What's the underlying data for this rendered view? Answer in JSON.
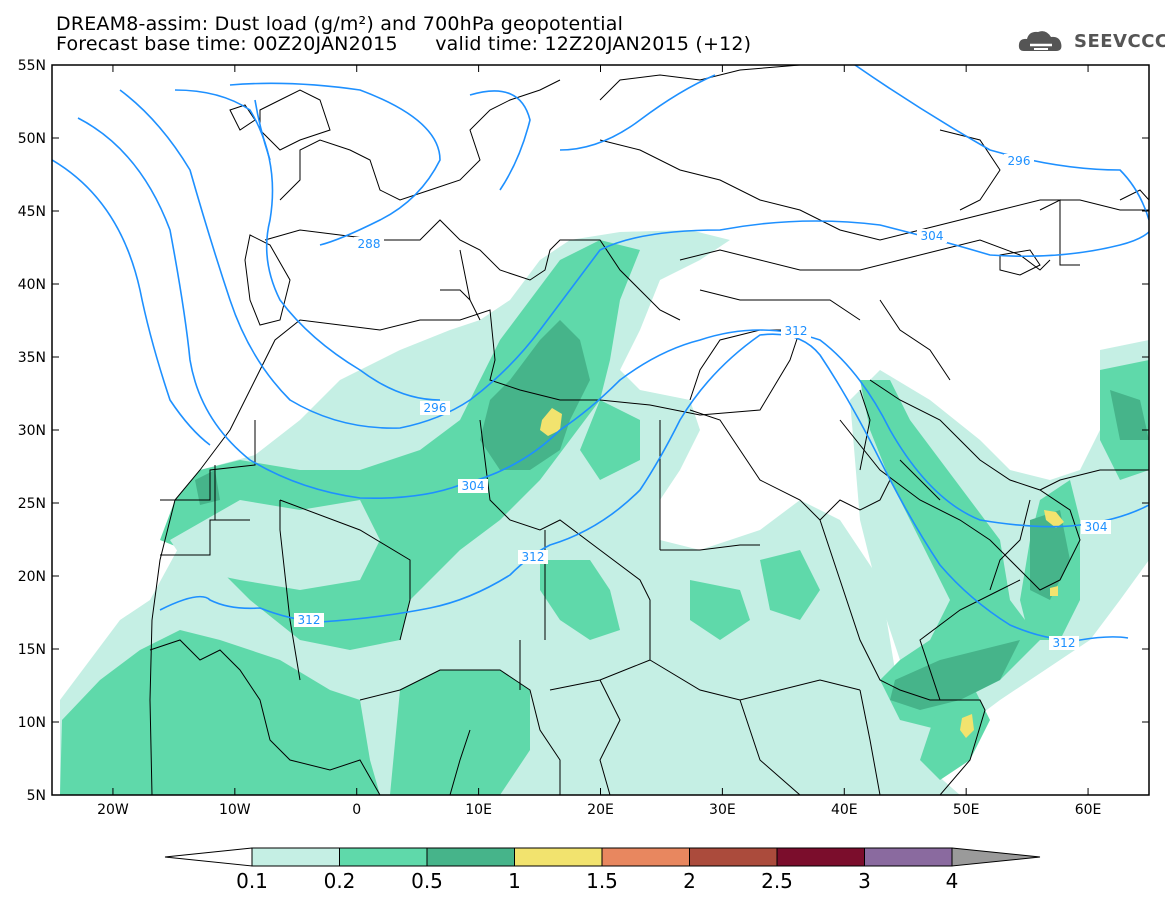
{
  "header": {
    "title": "DREAM8-assim: Dust load (g/m²) and 700hPa geopotential",
    "base_time": "Forecast base time: 00Z20JAN2015",
    "valid_time": "valid time: 12Z20JAN2015 (+12)"
  },
  "logo": {
    "text": "SEEVCCC",
    "icon": "cloud-icon"
  },
  "map": {
    "lat_labels": [
      "55N",
      "50N",
      "45N",
      "40N",
      "35N",
      "30N",
      "25N",
      "20N",
      "15N",
      "10N",
      "5N"
    ],
    "lon_labels": [
      "20W",
      "10W",
      "0",
      "10E",
      "20E",
      "30E",
      "40E",
      "50E",
      "60E"
    ],
    "extent": {
      "lon_min": -25,
      "lon_max": 65,
      "lat_min": 5,
      "lat_max": 55
    },
    "contour_color": "#1e90ff",
    "contour_labels": [
      "288",
      "296",
      "304",
      "312",
      "296",
      "304",
      "312",
      "304",
      "312",
      "312"
    ]
  },
  "colorbar": {
    "ticks": [
      "0.1",
      "0.2",
      "0.5",
      "1",
      "1.5",
      "2",
      "2.5",
      "3",
      "4"
    ],
    "colors": [
      "#c5efe4",
      "#5fd9aa",
      "#46b48a",
      "#f2e36e",
      "#e8875f",
      "#ab4b3c",
      "#7b0d2c",
      "#8a6a9f",
      "#9a9a9a"
    ]
  }
}
